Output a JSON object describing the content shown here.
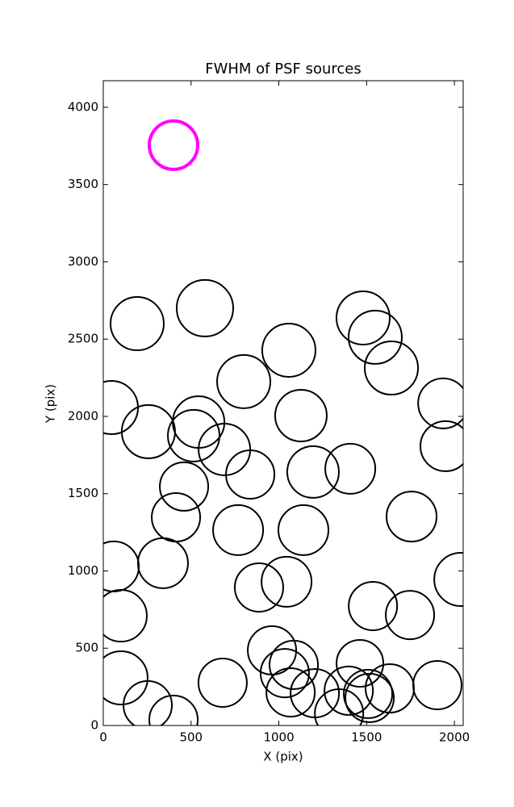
{
  "chart_data": {
    "type": "scatter",
    "title": "FWHM of PSF sources",
    "x_label": "X (pix)",
    "y_label": "Y (pix)",
    "xlim": [
      0,
      2050
    ],
    "ylim": [
      0,
      4172
    ],
    "xticks": [
      0,
      500,
      1000,
      1500,
      2000
    ],
    "yticks": [
      0,
      500,
      1000,
      1500,
      2000,
      2500,
      3000,
      3500,
      4000
    ],
    "series": [
      {
        "color": "#000000",
        "linewidth": 2,
        "x": [
          579,
          193,
          1480,
          1549,
          1057,
          1641,
          800,
          46,
          1936,
          1126,
          543,
          257,
          515,
          1949,
          690,
          837,
          1195,
          1407,
          460,
          1756,
          414,
          768,
          1140,
          60,
          340,
          2037,
          1044,
          887,
          1536,
          1747,
          101,
          961,
          1462,
          1085,
          1034,
          101,
          680,
          1903,
          1632,
          1398,
          1205,
          1067,
          1508,
          1517,
          253,
          400,
          1343
        ],
        "y": [
          2700,
          2600,
          2637,
          2512,
          2428,
          2313,
          2225,
          2057,
          2084,
          2005,
          1963,
          1901,
          1875,
          1807,
          1786,
          1624,
          1640,
          1661,
          1546,
          1352,
          1347,
          1264,
          1264,
          1029,
          1050,
          945,
          930,
          893,
          773,
          715,
          710,
          486,
          402,
          392,
          339,
          308,
          277,
          261,
          240,
          225,
          209,
          214,
          204,
          178,
          131,
          37,
          78
        ],
        "sizes": [
          3.5,
          3.3,
          3.3,
          3.3,
          3.3,
          3.3,
          3.3,
          3.3,
          3.1,
          3.2,
          3.2,
          3.3,
          3.2,
          3.1,
          3.2,
          3.0,
          3.2,
          3.1,
          3.0,
          3.1,
          3.0,
          3.1,
          3.1,
          3.1,
          3.1,
          3.3,
          3.1,
          3.0,
          3.0,
          3.0,
          3.2,
          3.0,
          2.9,
          3.0,
          3.0,
          3.3,
          3.0,
          3.0,
          3.0,
          3.0,
          3.0,
          3.0,
          3.0,
          3.0,
          3.0,
          3.0,
          3.0
        ]
      },
      {
        "color": "#ff00ff",
        "linewidth": 4,
        "x": [
          400
        ],
        "y": [
          3755
        ],
        "sizes": [
          3.0
        ]
      }
    ]
  }
}
